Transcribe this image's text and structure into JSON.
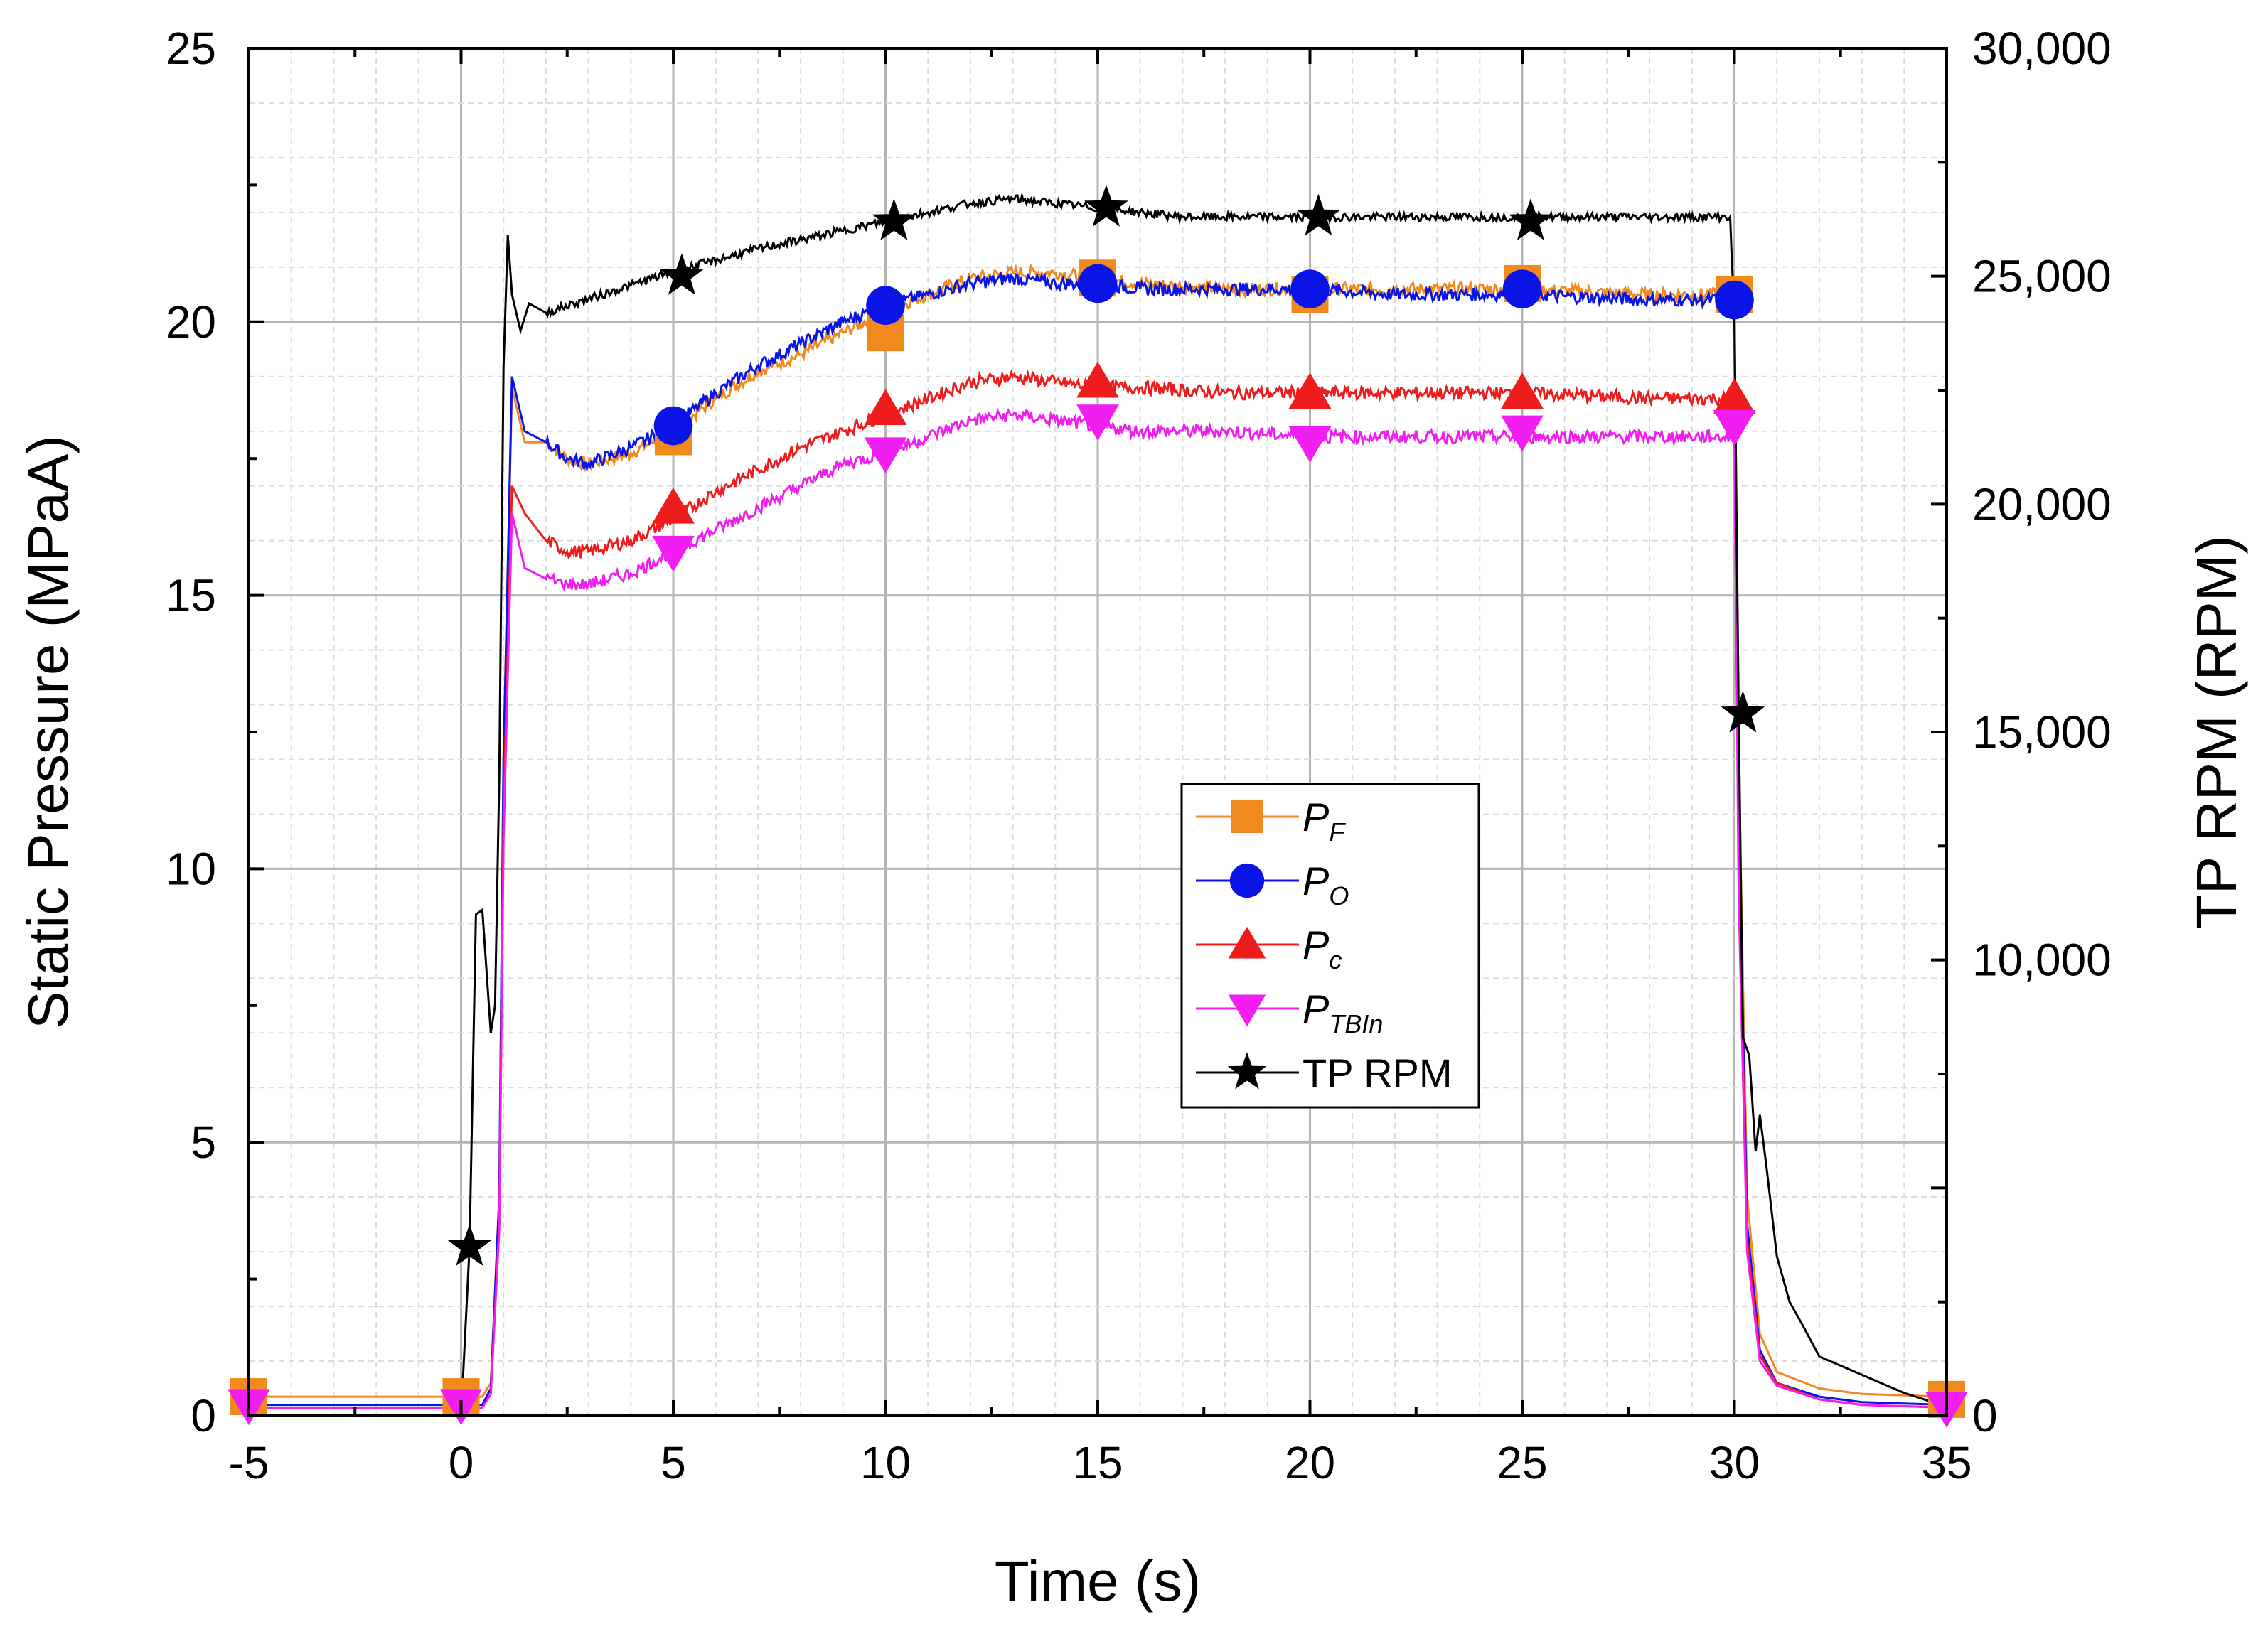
{
  "chart_data": {
    "type": "line",
    "xlabel": "Time (s)",
    "ylabel": "Static Pressure (MPaA)",
    "y2label": "TP RPM (RPM)",
    "xlim": [
      -5,
      35
    ],
    "ylim": [
      0,
      25
    ],
    "y2lim": [
      0,
      30000
    ],
    "x_ticks": [
      -5,
      0,
      5,
      10,
      15,
      20,
      25,
      30,
      35
    ],
    "x_tick_labels": [
      "-5",
      "0",
      "5",
      "10",
      "15",
      "20",
      "25",
      "30",
      "35"
    ],
    "y_ticks": [
      0,
      5,
      10,
      15,
      20,
      25
    ],
    "y_tick_labels": [
      "0",
      "5",
      "10",
      "15",
      "20",
      "25"
    ],
    "y2_ticks": [
      0,
      10000,
      15000,
      20000,
      25000,
      30000
    ],
    "y2_tick_labels": [
      "0",
      "10,000",
      "15,000",
      "20,000",
      "25,000",
      "30,000"
    ],
    "grid": true,
    "legend_position": "center-right",
    "series": [
      {
        "name": "P_F",
        "label_main": "P",
        "label_sub": "F",
        "color": "#f08a1e",
        "marker": "square",
        "axis": "left",
        "x": [
          -5,
          0,
          0.5,
          0.7,
          0.9,
          1.0,
          1.2,
          1.5,
          2.0,
          2.5,
          3.0,
          4.0,
          5.0,
          6.0,
          7.0,
          8.0,
          9.0,
          10.0,
          11.0,
          12.0,
          13.0,
          14.0,
          15.0,
          16.0,
          18.0,
          20.0,
          22.0,
          25.0,
          28.0,
          30.0,
          30.1,
          30.3,
          30.6,
          31.0,
          32.0,
          33.0,
          35.0
        ],
        "y": [
          0.35,
          0.35,
          0.35,
          0.6,
          4.0,
          12.0,
          18.8,
          17.8,
          17.8,
          17.5,
          17.4,
          17.6,
          18.0,
          18.6,
          19.1,
          19.4,
          19.8,
          20.2,
          20.5,
          20.8,
          20.9,
          20.9,
          20.8,
          20.7,
          20.6,
          20.6,
          20.6,
          20.6,
          20.5,
          20.5,
          12.0,
          4.0,
          1.5,
          0.8,
          0.5,
          0.4,
          0.35
        ],
        "marker_x": [
          -5,
          0,
          5,
          10,
          15,
          20,
          25,
          30,
          35
        ],
        "marker_y": [
          0.35,
          0.35,
          17.9,
          19.8,
          20.8,
          20.5,
          20.7,
          20.5,
          0.3
        ]
      },
      {
        "name": "P_O",
        "label_main": "P",
        "label_sub": "O",
        "color": "#0a14e6",
        "marker": "circle",
        "axis": "left",
        "x": [
          -5,
          0,
          0.5,
          0.7,
          0.9,
          1.0,
          1.2,
          1.5,
          2.0,
          2.5,
          3.0,
          4.0,
          5.0,
          6.0,
          7.0,
          8.0,
          9.0,
          10.0,
          11.0,
          12.0,
          13.0,
          14.0,
          15.0,
          16.0,
          18.0,
          20.0,
          22.0,
          25.0,
          28.0,
          30.0,
          30.1,
          30.3,
          30.6,
          31.0,
          32.0,
          33.0,
          35.0
        ],
        "y": [
          0.2,
          0.2,
          0.2,
          0.5,
          4.0,
          12.0,
          19.0,
          18.0,
          17.8,
          17.5,
          17.4,
          17.7,
          18.1,
          18.7,
          19.2,
          19.6,
          20.0,
          20.3,
          20.5,
          20.7,
          20.8,
          20.7,
          20.7,
          20.6,
          20.6,
          20.6,
          20.5,
          20.5,
          20.4,
          20.4,
          11.0,
          3.5,
          1.2,
          0.6,
          0.35,
          0.25,
          0.2
        ],
        "marker_x": [
          5,
          10,
          15,
          20,
          25,
          30
        ],
        "marker_y": [
          18.1,
          20.3,
          20.7,
          20.6,
          20.6,
          20.4
        ]
      },
      {
        "name": "P_c",
        "label_main": "P",
        "label_sub": "c",
        "color": "#ee1c1c",
        "marker": "triangle-up",
        "axis": "left",
        "x": [
          -5,
          0,
          0.5,
          0.7,
          0.9,
          1.0,
          1.2,
          1.5,
          2.0,
          2.5,
          3.0,
          4.0,
          5.0,
          6.0,
          7.0,
          8.0,
          9.0,
          10.0,
          11.0,
          12.0,
          13.0,
          14.0,
          15.0,
          16.0,
          18.0,
          20.0,
          22.0,
          25.0,
          28.0,
          30.0,
          30.1,
          30.3,
          30.6,
          31.0,
          32.0,
          33.0,
          35.0
        ],
        "y": [
          0.15,
          0.15,
          0.15,
          0.4,
          3.5,
          11.0,
          17.0,
          16.5,
          16.0,
          15.8,
          15.8,
          16.0,
          16.4,
          16.9,
          17.3,
          17.7,
          18.0,
          18.3,
          18.6,
          18.9,
          19.0,
          18.9,
          18.8,
          18.8,
          18.7,
          18.7,
          18.7,
          18.7,
          18.6,
          18.6,
          10.0,
          3.2,
          1.1,
          0.6,
          0.3,
          0.2,
          0.15
        ],
        "marker_x": [
          5,
          10,
          15,
          20,
          25,
          30
        ],
        "marker_y": [
          16.6,
          18.4,
          18.9,
          18.7,
          18.7,
          18.6
        ]
      },
      {
        "name": "P_TBIn",
        "label_main": "P",
        "label_sub": "TBIn",
        "color": "#f01ef0",
        "marker": "triangle-down",
        "axis": "left",
        "x": [
          -5,
          0,
          0.5,
          0.7,
          0.9,
          1.0,
          1.2,
          1.5,
          2.0,
          2.5,
          3.0,
          4.0,
          5.0,
          6.0,
          7.0,
          8.0,
          9.0,
          10.0,
          11.0,
          12.0,
          13.0,
          14.0,
          15.0,
          16.0,
          18.0,
          20.0,
          22.0,
          25.0,
          28.0,
          30.0,
          30.1,
          30.3,
          30.6,
          31.0,
          32.0,
          33.0,
          35.0
        ],
        "y": [
          0.15,
          0.15,
          0.15,
          0.4,
          3.4,
          10.5,
          16.5,
          15.5,
          15.3,
          15.2,
          15.2,
          15.4,
          15.8,
          16.2,
          16.6,
          17.0,
          17.4,
          17.6,
          17.9,
          18.2,
          18.3,
          18.2,
          18.1,
          18.0,
          18.0,
          17.9,
          17.9,
          17.9,
          17.9,
          17.9,
          9.5,
          3.0,
          1.0,
          0.55,
          0.3,
          0.2,
          0.15
        ],
        "marker_x": [
          -5,
          0,
          5,
          10,
          15,
          20,
          25,
          30,
          35
        ],
        "marker_y": [
          0.2,
          0.2,
          15.8,
          17.6,
          18.2,
          17.8,
          18.0,
          18.1,
          0.15
        ]
      },
      {
        "name": "TP RPM",
        "label_main": "TP RPM",
        "label_sub": "",
        "color": "#000000",
        "marker": "star",
        "axis": "right",
        "x": [
          -5,
          0,
          0.2,
          0.35,
          0.5,
          0.7,
          0.8,
          0.9,
          1.0,
          1.1,
          1.2,
          1.4,
          1.6,
          2.0,
          3.0,
          4.0,
          5.0,
          7.0,
          9.0,
          10.0,
          11.0,
          12.0,
          13.0,
          15.0,
          17.0,
          20.0,
          25.0,
          29.9,
          30.0,
          30.1,
          30.2,
          30.35,
          30.5,
          30.6,
          30.75,
          31.0,
          31.3,
          31.6,
          32.0,
          33.0,
          34.0,
          35.0
        ],
        "y": [
          0,
          0,
          3700,
          11000,
          11100,
          8400,
          9000,
          14000,
          23000,
          25900,
          24600,
          23800,
          24400,
          24200,
          24500,
          24800,
          25100,
          25600,
          26000,
          26200,
          26400,
          26600,
          26700,
          26500,
          26300,
          26300,
          26300,
          26300,
          24000,
          15400,
          8300,
          7900,
          5800,
          6600,
          5500,
          3500,
          2500,
          2000,
          1300,
          900,
          500,
          200
        ],
        "marker_x": [
          0.2,
          5.2,
          10.2,
          15.2,
          20.2,
          25.2,
          30.2
        ],
        "marker_y": [
          3700,
          25000,
          26200,
          26500,
          26300,
          26200,
          15400
        ]
      }
    ]
  }
}
